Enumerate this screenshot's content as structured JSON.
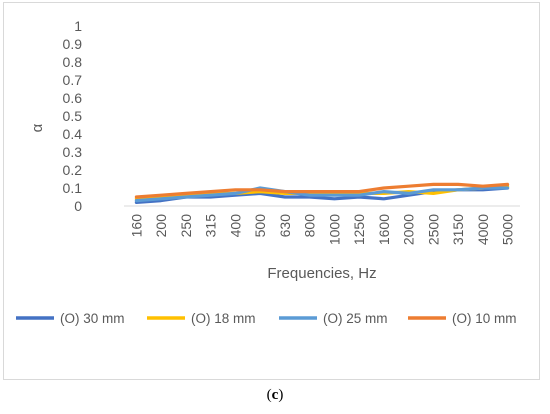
{
  "caption": {
    "open": "(",
    "letter": "c",
    "close": ")"
  },
  "chart_data": {
    "type": "line",
    "title": "",
    "xlabel": "Frequencies, Hz",
    "ylabel": "α",
    "ylim": [
      0,
      1
    ],
    "ytick_step": 0.1,
    "yticks": [
      "0",
      "0.1",
      "0.2",
      "0.3",
      "0.4",
      "0.5",
      "0.6",
      "0.7",
      "0.8",
      "0.9",
      "1"
    ],
    "grid": false,
    "legend_position": "bottom",
    "categories": [
      "160",
      "200",
      "250",
      "315",
      "400",
      "500",
      "630",
      "800",
      "1000",
      "1250",
      "1600",
      "2000",
      "2500",
      "3150",
      "4000",
      "5000"
    ],
    "series": [
      {
        "name": "(O) 30 mm",
        "color": "#4472C4",
        "values": [
          0.02,
          0.03,
          0.05,
          0.05,
          0.06,
          0.07,
          0.05,
          0.05,
          0.04,
          0.05,
          0.04,
          0.06,
          0.08,
          0.09,
          0.09,
          0.1
        ]
      },
      {
        "name": "(O) 18 mm",
        "color": "#FFC000",
        "values": [
          0.04,
          0.05,
          0.06,
          0.07,
          0.07,
          0.08,
          0.07,
          0.07,
          0.07,
          0.07,
          0.07,
          0.08,
          0.07,
          0.09,
          0.1,
          0.11
        ]
      },
      {
        "name": "(O) 25 mm",
        "color": "#5B9BD5",
        "values": [
          0.03,
          0.04,
          0.05,
          0.06,
          0.07,
          0.1,
          0.08,
          0.06,
          0.06,
          0.06,
          0.08,
          0.07,
          0.09,
          0.09,
          0.1,
          0.1
        ]
      },
      {
        "name": "(O) 10 mm",
        "color": "#ED7D31",
        "values": [
          0.05,
          0.06,
          0.07,
          0.08,
          0.09,
          0.09,
          0.08,
          0.08,
          0.08,
          0.08,
          0.1,
          0.11,
          0.12,
          0.12,
          0.11,
          0.12
        ]
      }
    ]
  }
}
